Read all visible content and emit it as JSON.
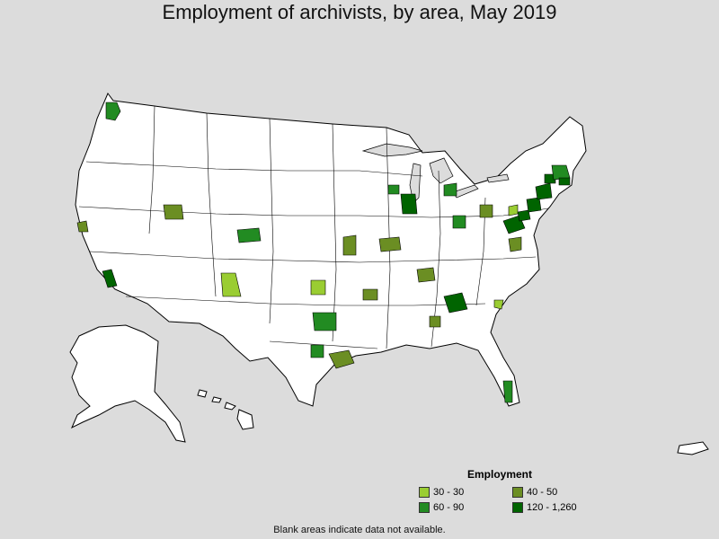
{
  "title": "Employment of archivists, by area, May 2019",
  "legend": {
    "title": "Employment",
    "items": [
      {
        "label": "30 - 30",
        "color": "#9acd32"
      },
      {
        "label": "40 - 50",
        "color": "#6b8e23"
      },
      {
        "label": "60 - 90",
        "color": "#228b22"
      },
      {
        "label": "120 - 1,260",
        "color": "#006400"
      }
    ]
  },
  "footnote": "Blank areas indicate data not available.",
  "colors": {
    "background": "#dcdcdc",
    "land": "#ffffff",
    "border": "#000000"
  }
}
